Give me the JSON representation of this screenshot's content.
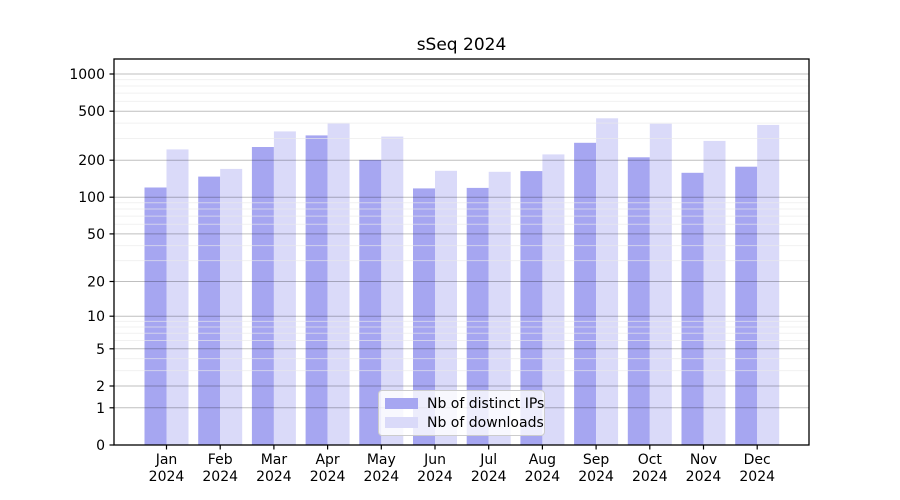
{
  "page": {
    "background": "#ffffff"
  },
  "chart_data": {
    "type": "bar",
    "title": "sSeq 2024",
    "xlabel": "",
    "ylabel": "",
    "scale": "log1p",
    "categories": [
      "Jan 2024",
      "Feb 2024",
      "Mar 2024",
      "Apr 2024",
      "May 2024",
      "Jun 2024",
      "Jul 2024",
      "Aug 2024",
      "Sep 2024",
      "Oct 2024",
      "Nov 2024",
      "Dec 2024"
    ],
    "y_ticks": [
      0,
      1,
      2,
      5,
      10,
      20,
      50,
      100,
      200,
      500,
      1000
    ],
    "ylim": [
      0,
      1340
    ],
    "grid": "horizontal, log major and minor lines drawn over bars",
    "legend_position": "lower center",
    "series": [
      {
        "name": "Nb of distinct IPs",
        "color": "#a6a6f1",
        "values": [
          120,
          147,
          256,
          318,
          201,
          118,
          119,
          163,
          277,
          211,
          158,
          177
        ]
      },
      {
        "name": "Nb of downloads",
        "color": "#dadaf9",
        "values": [
          245,
          170,
          343,
          397,
          311,
          164,
          161,
          223,
          438,
          396,
          287,
          387
        ]
      }
    ]
  }
}
